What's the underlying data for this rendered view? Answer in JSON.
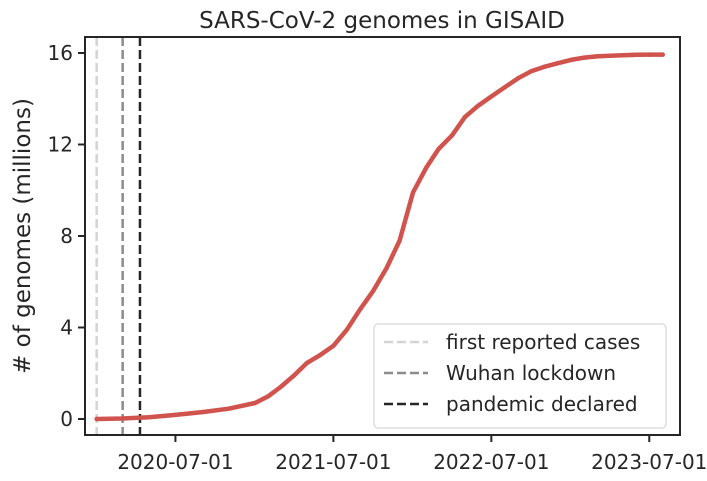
{
  "chart_data": {
    "type": "line",
    "title": "SARS-CoV-2 genomes in GISAID",
    "xlabel": "",
    "ylabel": "# of genomes (millions)",
    "x_ticks": [
      "2020-07-01",
      "2021-07-01",
      "2022-07-01",
      "2023-07-01"
    ],
    "y_ticks": [
      0,
      4,
      8,
      12,
      16
    ],
    "xlim": [
      "2019-12-05",
      "2023-09-10"
    ],
    "ylim": [
      -0.7,
      16.7
    ],
    "grid": false,
    "legend_position": "lower-right",
    "series": [
      {
        "color": "#d1534e",
        "x": [
          "2020-01-01",
          "2020-03-01",
          "2020-05-01",
          "2020-07-01",
          "2020-09-01",
          "2020-11-01",
          "2021-01-01",
          "2021-02-01",
          "2021-03-01",
          "2021-04-01",
          "2021-05-01",
          "2021-06-01",
          "2021-07-01",
          "2021-08-01",
          "2021-09-01",
          "2021-10-01",
          "2021-11-01",
          "2021-12-01",
          "2022-01-01",
          "2022-02-01",
          "2022-03-01",
          "2022-04-01",
          "2022-05-01",
          "2022-06-01",
          "2022-07-01",
          "2022-08-01",
          "2022-09-01",
          "2022-10-01",
          "2022-11-01",
          "2022-12-01",
          "2023-01-01",
          "2023-02-01",
          "2023-03-01",
          "2023-04-01",
          "2023-05-01",
          "2023-06-01",
          "2023-07-01",
          "2023-08-01"
        ],
        "values": [
          0.0,
          0.02,
          0.08,
          0.18,
          0.3,
          0.45,
          0.7,
          1.0,
          1.4,
          1.9,
          2.45,
          2.8,
          3.2,
          3.9,
          4.8,
          5.6,
          6.6,
          7.8,
          9.9,
          11.0,
          11.8,
          12.4,
          13.2,
          13.7,
          14.1,
          14.5,
          14.9,
          15.2,
          15.4,
          15.55,
          15.7,
          15.8,
          15.85,
          15.88,
          15.9,
          15.92,
          15.93,
          15.93
        ]
      }
    ],
    "vlines": [
      {
        "label": "first reported cases",
        "date": "2020-01-01",
        "color": "#d4d4d4"
      },
      {
        "label": "Wuhan lockdown",
        "date": "2020-03-01",
        "color": "#8c8c8c"
      },
      {
        "label": "pandemic declared",
        "date": "2020-04-10",
        "color": "#262626"
      }
    ]
  }
}
